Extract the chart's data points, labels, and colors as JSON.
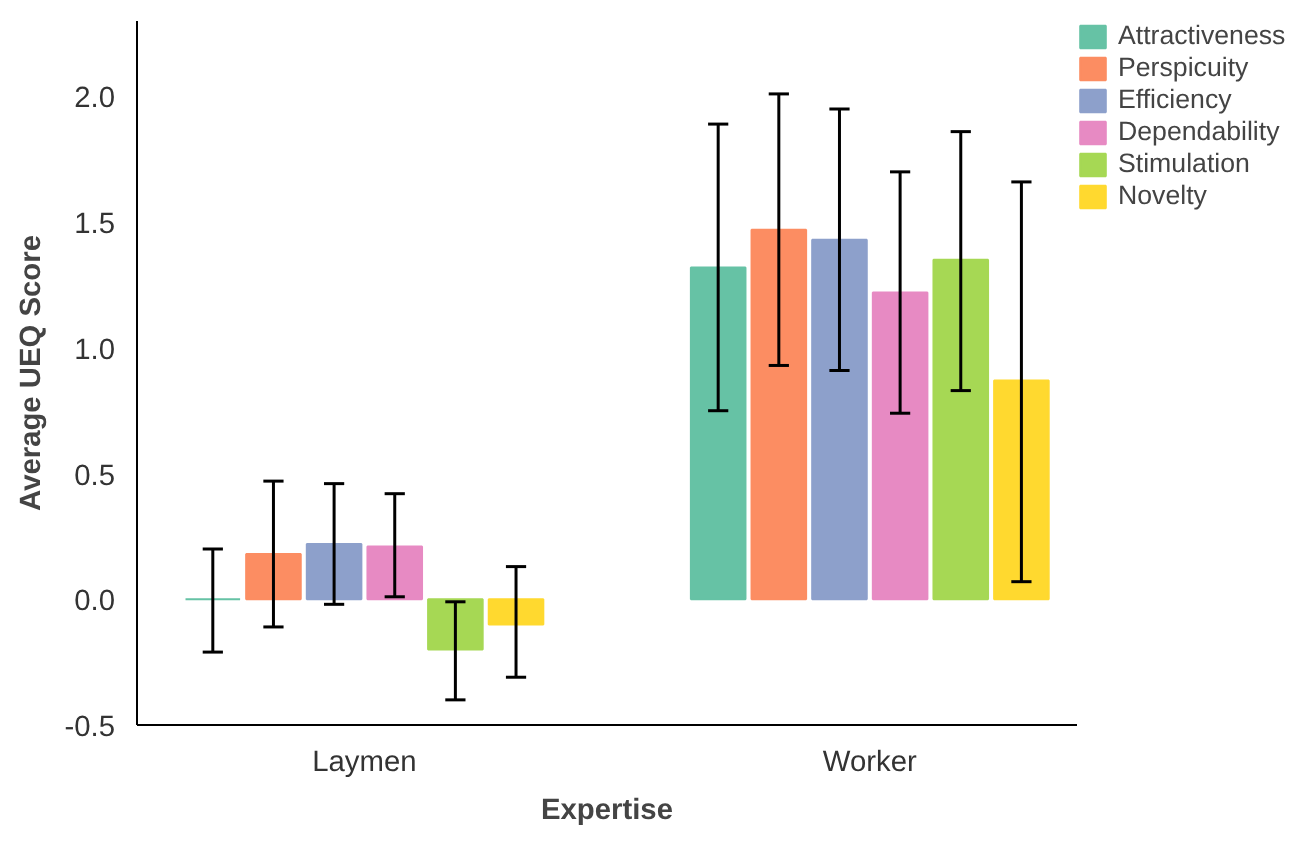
{
  "chart_data": {
    "type": "bar",
    "xlabel": "Expertise",
    "ylabel": "Average UEQ Score",
    "categories": [
      "Laymen",
      "Worker"
    ],
    "ylim": [
      -0.5,
      2.3
    ],
    "yticks": [
      {
        "value": -0.5,
        "label": "-0.5"
      },
      {
        "value": 0,
        "label": "0.0"
      },
      {
        "value": 0.5,
        "label": "0.5"
      },
      {
        "value": 1,
        "label": "1.0"
      },
      {
        "value": 1.5,
        "label": "1.5"
      },
      {
        "value": 2,
        "label": "2.0"
      }
    ],
    "grid": false,
    "legend": "top right",
    "series": [
      {
        "name": "Attractiveness",
        "color": "#66c2a5",
        "values": [
          0.0,
          1.32
        ],
        "errors": [
          [
            -0.21,
            0.2
          ],
          [
            0.75,
            1.89
          ]
        ]
      },
      {
        "name": "Perspicuity",
        "color": "#fc8d62",
        "values": [
          0.18,
          1.47
        ],
        "errors": [
          [
            -0.11,
            0.47
          ],
          [
            0.93,
            2.01
          ]
        ]
      },
      {
        "name": "Efficiency",
        "color": "#8da0cb",
        "values": [
          0.22,
          1.43
        ],
        "errors": [
          [
            -0.02,
            0.46
          ],
          [
            0.91,
            1.95
          ]
        ]
      },
      {
        "name": "Dependability",
        "color": "#e78ac3",
        "values": [
          0.21,
          1.22
        ],
        "errors": [
          [
            0.01,
            0.42
          ],
          [
            0.74,
            1.7
          ]
        ]
      },
      {
        "name": "Stimulation",
        "color": "#a6d854",
        "values": [
          -0.2,
          1.35
        ],
        "errors": [
          [
            -0.4,
            -0.01
          ],
          [
            0.83,
            1.86
          ]
        ]
      },
      {
        "name": "Novelty",
        "color": "#ffd92f",
        "values": [
          -0.1,
          0.87
        ],
        "errors": [
          [
            -0.31,
            0.13
          ],
          [
            0.07,
            1.66
          ]
        ]
      }
    ]
  }
}
